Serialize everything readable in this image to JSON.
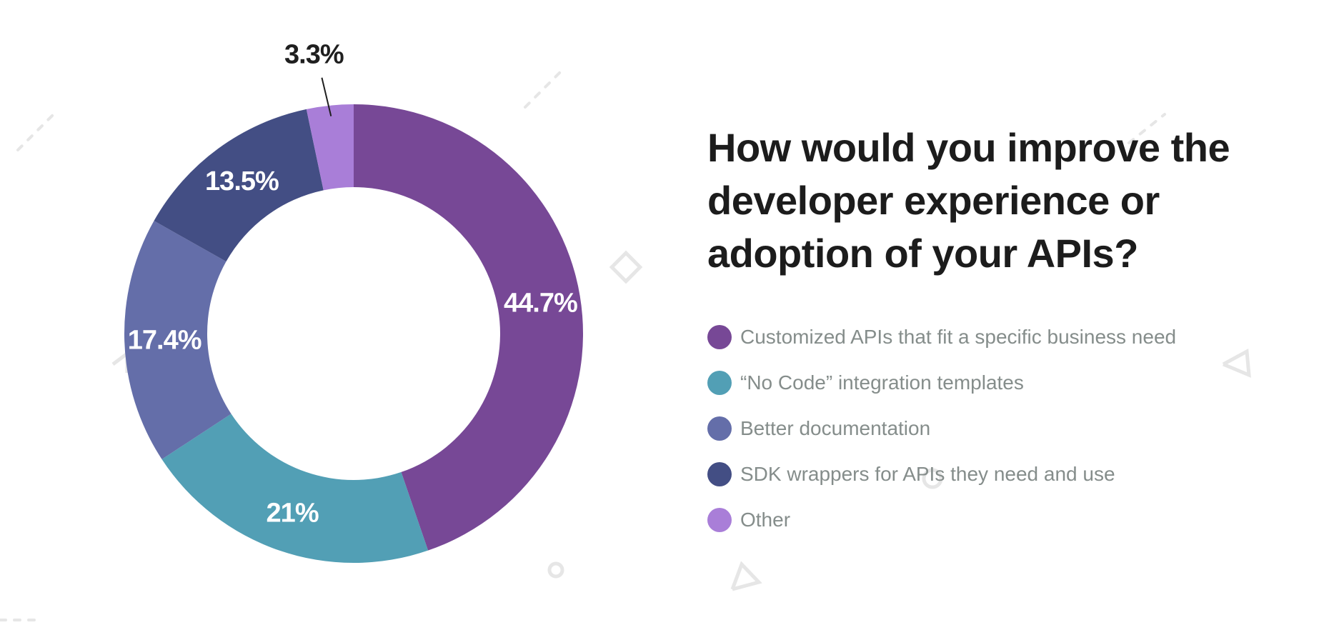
{
  "chart_data": {
    "type": "pie",
    "title": "How would you improve the developer experience or adoption of your APIs?",
    "categories": [
      "Customized APIs that fit a specific business need",
      "“No Code” integration templates",
      "Better documentation",
      "SDK wrappers for APIs they need and use",
      "Other"
    ],
    "values": [
      44.7,
      21,
      17.4,
      13.5,
      3.3
    ],
    "value_labels": [
      "44.7%",
      "21%",
      "17.4%",
      "13.5%",
      "3.3%"
    ],
    "colors": [
      "#774896",
      "#529fb5",
      "#646ea9",
      "#434e84",
      "#a97ed8"
    ],
    "donut": true,
    "legend": "right"
  }
}
